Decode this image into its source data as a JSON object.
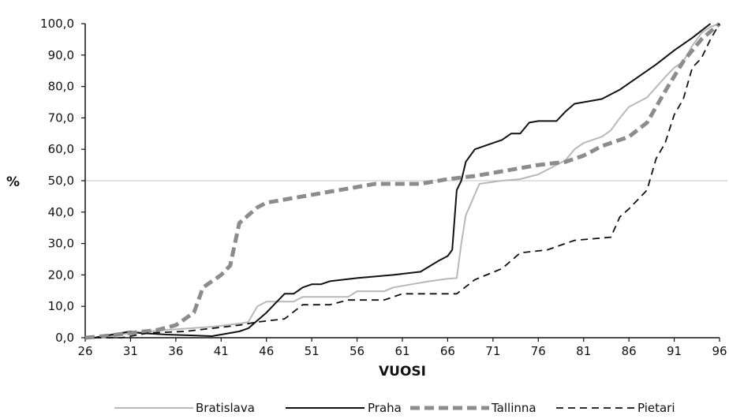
{
  "chart_data": {
    "type": "line",
    "xlabel": "VUOSI",
    "ylabel": "%",
    "xlim": [
      26,
      96
    ],
    "ylim": [
      0,
      100
    ],
    "x_ticks": [
      "26",
      "31",
      "36",
      "41",
      "46",
      "51",
      "56",
      "61",
      "66",
      "71",
      "76",
      "81",
      "86",
      "91",
      "96"
    ],
    "y_ticks": [
      "0,0",
      "10,0",
      "20,0",
      "30,0",
      "40,0",
      "50,0",
      "60,0",
      "70,0",
      "80,0",
      "90,0",
      "100,0"
    ],
    "reference_line_y": 50,
    "grid": false,
    "legend_position": "bottom",
    "series": [
      {
        "name": "Bratislava",
        "color": "#b8b8b8",
        "style": "solid",
        "points": [
          [
            26,
            0
          ],
          [
            28,
            0
          ],
          [
            31,
            1.5
          ],
          [
            35,
            2.5
          ],
          [
            40,
            3.5
          ],
          [
            43,
            4.5
          ],
          [
            44,
            5
          ],
          [
            45,
            10
          ],
          [
            46,
            11.5
          ],
          [
            47,
            11.5
          ],
          [
            49,
            11.5
          ],
          [
            50,
            13
          ],
          [
            52,
            13
          ],
          [
            55,
            13
          ],
          [
            56,
            14.8
          ],
          [
            59,
            14.8
          ],
          [
            60,
            16
          ],
          [
            62,
            17
          ],
          [
            64,
            18
          ],
          [
            66,
            18.8
          ],
          [
            67,
            19
          ],
          [
            67.5,
            30
          ],
          [
            68,
            39
          ],
          [
            69.5,
            49
          ],
          [
            72,
            50
          ],
          [
            74,
            50.5
          ],
          [
            76,
            52
          ],
          [
            79,
            56.5
          ],
          [
            80,
            60
          ],
          [
            81,
            62
          ],
          [
            83,
            64
          ],
          [
            84,
            66
          ],
          [
            85,
            70
          ],
          [
            86,
            73.5
          ],
          [
            87,
            75
          ],
          [
            88,
            76.5
          ],
          [
            90,
            83
          ],
          [
            91,
            86
          ],
          [
            92,
            88
          ],
          [
            93,
            93
          ],
          [
            94,
            97
          ],
          [
            95,
            99
          ],
          [
            96,
            100
          ]
        ]
      },
      {
        "name": "Praha",
        "color": "#111111",
        "style": "solid",
        "points": [
          [
            27,
            0
          ],
          [
            30,
            1.5
          ],
          [
            31,
            2
          ],
          [
            32,
            1.5
          ],
          [
            35,
            1
          ],
          [
            40,
            0.5
          ],
          [
            43,
            2
          ],
          [
            44,
            3
          ],
          [
            46,
            8
          ],
          [
            47,
            11
          ],
          [
            48,
            14
          ],
          [
            49,
            14
          ],
          [
            50,
            16
          ],
          [
            51,
            17
          ],
          [
            52,
            17
          ],
          [
            53,
            18
          ],
          [
            56,
            19
          ],
          [
            60,
            20
          ],
          [
            63,
            21
          ],
          [
            65,
            24.5
          ],
          [
            66,
            26
          ],
          [
            66.5,
            28
          ],
          [
            67,
            47
          ],
          [
            67.5,
            50
          ],
          [
            68,
            56
          ],
          [
            69,
            60
          ],
          [
            70,
            61
          ],
          [
            71,
            62
          ],
          [
            72,
            63
          ],
          [
            73,
            65
          ],
          [
            74,
            65
          ],
          [
            75,
            68.5
          ],
          [
            76,
            69
          ],
          [
            77,
            69
          ],
          [
            78,
            69
          ],
          [
            79,
            72
          ],
          [
            80,
            74.5
          ],
          [
            81,
            75
          ],
          [
            82,
            75.5
          ],
          [
            83,
            76
          ],
          [
            85,
            79
          ],
          [
            87,
            83
          ],
          [
            89,
            87
          ],
          [
            91,
            91.5
          ],
          [
            93,
            95.5
          ],
          [
            95,
            100
          ]
        ]
      },
      {
        "name": "Tallinna",
        "color": "#8c8c8c",
        "style": "thick-dashed",
        "points": [
          [
            26,
            0
          ],
          [
            28,
            0.5
          ],
          [
            31,
            1.5
          ],
          [
            34,
            2.5
          ],
          [
            36,
            4
          ],
          [
            38,
            8
          ],
          [
            39,
            16
          ],
          [
            41,
            20
          ],
          [
            42,
            23
          ],
          [
            43,
            36.5
          ],
          [
            44,
            39
          ],
          [
            45,
            41.5
          ],
          [
            46,
            43
          ],
          [
            48,
            44
          ],
          [
            50,
            45
          ],
          [
            53,
            46.5
          ],
          [
            56,
            48
          ],
          [
            58,
            49
          ],
          [
            61,
            49
          ],
          [
            63,
            49
          ],
          [
            66,
            50.5
          ],
          [
            69,
            51.5
          ],
          [
            72,
            53
          ],
          [
            76,
            55
          ],
          [
            79,
            56
          ],
          [
            81,
            58
          ],
          [
            83,
            61
          ],
          [
            86,
            64
          ],
          [
            88,
            68.5
          ],
          [
            90,
            78.5
          ],
          [
            92,
            88
          ],
          [
            94,
            95
          ],
          [
            96,
            100
          ]
        ]
      },
      {
        "name": "Pietari",
        "color": "#111111",
        "style": "dashed",
        "points": [
          [
            27,
            0
          ],
          [
            30,
            0
          ],
          [
            33,
            1.5
          ],
          [
            37,
            2
          ],
          [
            40,
            3
          ],
          [
            43,
            4
          ],
          [
            45,
            5
          ],
          [
            48,
            6
          ],
          [
            50,
            10.5
          ],
          [
            53,
            10.5
          ],
          [
            55,
            12
          ],
          [
            59,
            12
          ],
          [
            61,
            14
          ],
          [
            67,
            14
          ],
          [
            69,
            18.5
          ],
          [
            72,
            22
          ],
          [
            74,
            27
          ],
          [
            77,
            28
          ],
          [
            80,
            31
          ],
          [
            84,
            32
          ],
          [
            85,
            38.5
          ],
          [
            86,
            41
          ],
          [
            87,
            44
          ],
          [
            88,
            47
          ],
          [
            89,
            57
          ],
          [
            90,
            62
          ],
          [
            91,
            71
          ],
          [
            92,
            76
          ],
          [
            93,
            86
          ],
          [
            94,
            89
          ],
          [
            95,
            95
          ],
          [
            96,
            100
          ]
        ]
      }
    ]
  }
}
